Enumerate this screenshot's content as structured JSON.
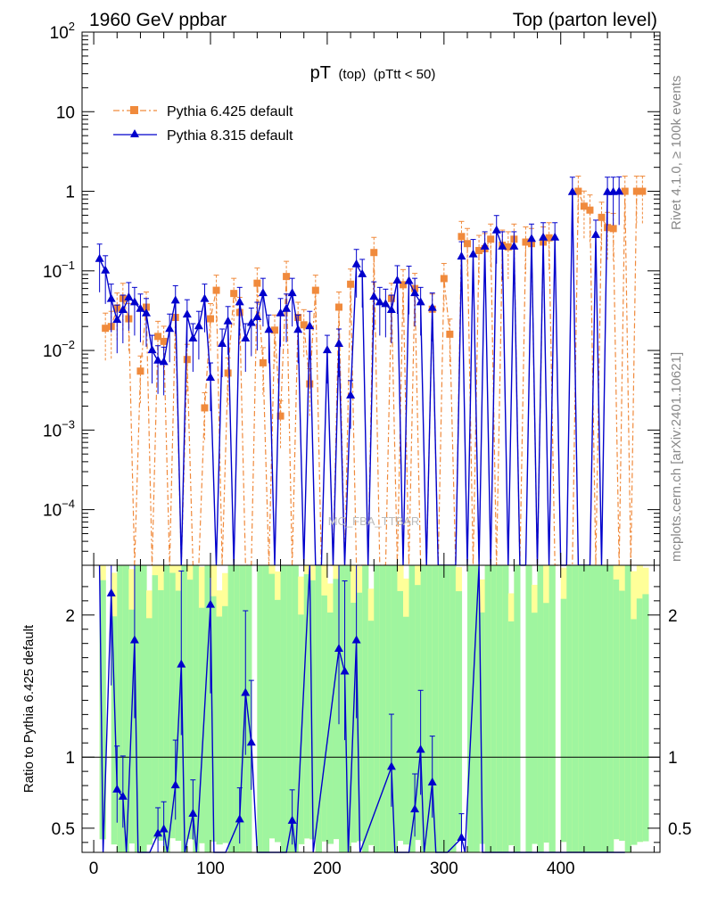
{
  "header": {
    "left": "1960 GeV ppbar",
    "right": "Top (parton level)"
  },
  "side_labels": {
    "rivet": "Rivet 4.1.0, ≥ 100k events",
    "mcplots": "mcplots.cern.ch [arXiv:2401.10621]"
  },
  "watermark": "MC_FBA_TTBAR",
  "colors": {
    "pythia6": "#f08a3c",
    "pythia8": "#0000cc",
    "band_green": "#9ff59f",
    "band_yellow": "#ffff99"
  },
  "chart_data": [
    {
      "type": "line",
      "title": "pT",
      "title_sub": "(top)",
      "title_cut": "(pTtt < 50)",
      "yscale": "log",
      "ylim": [
        2e-05,
        100
      ],
      "xlim": [
        -10,
        485
      ],
      "yticks": [
        {
          "base": "10",
          "exp": "2",
          "value": 100
        },
        {
          "text": "10",
          "value": 10
        },
        {
          "text": "1",
          "value": 1
        },
        {
          "base": "10",
          "exp": "−1",
          "value": 0.1
        },
        {
          "base": "10",
          "exp": "−2",
          "value": 0.01
        },
        {
          "base": "10",
          "exp": "−3",
          "value": 0.001
        },
        {
          "base": "10",
          "exp": "−4",
          "value": 0.0001
        }
      ],
      "legend_position": "top-left",
      "series": [
        {
          "name": "Pythia 6.425 default",
          "style": "dash-dot, square markers",
          "points": [
            [
              10,
              0.019
            ],
            [
              15,
              0.02
            ],
            [
              20,
              0.034
            ],
            [
              25,
              0.045
            ],
            [
              30,
              0.025
            ],
            [
              40,
              0.0055
            ],
            [
              45,
              0.035
            ],
            [
              55,
              0.015
            ],
            [
              60,
              0.013
            ],
            [
              70,
              0.026
            ],
            [
              80,
              0.0077
            ],
            [
              95,
              0.0019
            ],
            [
              100,
              0.025
            ],
            [
              105,
              0.057
            ],
            [
              115,
              0.0052
            ],
            [
              120,
              0.052
            ],
            [
              125,
              0.03
            ],
            [
              140,
              0.07
            ],
            [
              145,
              0.007
            ],
            [
              155,
              0.018
            ],
            [
              160,
              0.0015
            ],
            [
              165,
              0.085
            ],
            [
              175,
              0.026
            ],
            [
              180,
              0.021
            ],
            [
              185,
              0.0038
            ],
            [
              190,
              0.057
            ],
            [
              210,
              0.035
            ],
            [
              220,
              0.068
            ],
            [
              240,
              0.17
            ],
            [
              255,
              0.045
            ],
            [
              265,
              0.067
            ],
            [
              275,
              0.06
            ],
            [
              290,
              0.033
            ],
            [
              300,
              0.08
            ],
            [
              305,
              0.016
            ],
            [
              315,
              0.27
            ],
            [
              320,
              0.22
            ],
            [
              330,
              0.18
            ],
            [
              335,
              0.19
            ],
            [
              340,
              0.25
            ],
            [
              350,
              0.21
            ],
            [
              355,
              0.2
            ],
            [
              360,
              0.25
            ],
            [
              370,
              0.23
            ],
            [
              375,
              0.22
            ],
            [
              385,
              0.23
            ],
            [
              390,
              0.26
            ],
            [
              415,
              1.0
            ],
            [
              420,
              0.65
            ],
            [
              425,
              0.58
            ],
            [
              435,
              0.47
            ],
            [
              440,
              0.35
            ],
            [
              445,
              0.34
            ],
            [
              455,
              1.0
            ],
            [
              465,
              1.0
            ],
            [
              470,
              1.0
            ]
          ]
        },
        {
          "name": "Pythia 8.315 default",
          "style": "solid, triangle markers",
          "points": [
            [
              5,
              0.14
            ],
            [
              10,
              0.1
            ],
            [
              15,
              0.044
            ],
            [
              20,
              0.024
            ],
            [
              25,
              0.032
            ],
            [
              30,
              0.046
            ],
            [
              35,
              0.04
            ],
            [
              40,
              0.033
            ],
            [
              45,
              0.029
            ],
            [
              50,
              0.01
            ],
            [
              55,
              0.0074
            ],
            [
              60,
              0.0071
            ],
            [
              65,
              0.0185
            ],
            [
              70,
              0.042
            ],
            [
              80,
              0.028
            ],
            [
              85,
              0.014
            ],
            [
              90,
              0.02
            ],
            [
              95,
              0.044
            ],
            [
              100,
              0.0045
            ],
            [
              110,
              0.012
            ],
            [
              115,
              0.023
            ],
            [
              125,
              0.04
            ],
            [
              130,
              0.014
            ],
            [
              135,
              0.022
            ],
            [
              140,
              0.026
            ],
            [
              145,
              0.052
            ],
            [
              150,
              0.018
            ],
            [
              160,
              0.029
            ],
            [
              165,
              0.033
            ],
            [
              170,
              0.052
            ],
            [
              175,
              0.018
            ],
            [
              185,
              0.02
            ],
            [
              200,
              0.01
            ],
            [
              210,
              0.012
            ],
            [
              220,
              0.0027
            ],
            [
              225,
              0.12
            ],
            [
              230,
              0.09
            ],
            [
              240,
              0.047
            ],
            [
              245,
              0.04
            ],
            [
              250,
              0.038
            ],
            [
              255,
              0.032
            ],
            [
              260,
              0.075
            ],
            [
              270,
              0.074
            ],
            [
              275,
              0.052
            ],
            [
              280,
              0.04
            ],
            [
              290,
              0.034
            ],
            [
              315,
              0.15
            ],
            [
              325,
              0.16
            ],
            [
              335,
              0.2
            ],
            [
              345,
              0.32
            ],
            [
              350,
              0.2
            ],
            [
              360,
              0.2
            ],
            [
              375,
              0.25
            ],
            [
              385,
              0.26
            ],
            [
              395,
              0.26
            ],
            [
              410,
              0.97
            ],
            [
              430,
              0.28
            ],
            [
              440,
              0.97
            ],
            [
              445,
              0.97
            ],
            [
              450,
              0.98
            ]
          ]
        }
      ]
    },
    {
      "type": "line",
      "ylabel": "Ratio to Pythia 6.425 default",
      "ylim": [
        0.33,
        2.35
      ],
      "xlim": [
        -10,
        485
      ],
      "yticks": [
        {
          "text": "0.5",
          "value": 0.5
        },
        {
          "text": "1",
          "value": 1
        },
        {
          "text": "2",
          "value": 2
        }
      ],
      "xticks": [
        {
          "text": "0",
          "value": 0
        },
        {
          "text": "100",
          "value": 100
        },
        {
          "text": "200",
          "value": 200
        },
        {
          "text": "300",
          "value": 300
        },
        {
          "text": "400",
          "value": 400
        }
      ],
      "reference_line": 1,
      "series": [
        {
          "name": "Pythia 8.315 / Pythia 6.425",
          "points": [
            [
              5,
              3.0
            ],
            [
              15,
              2.15
            ],
            [
              20,
              0.77
            ],
            [
              25,
              0.72
            ],
            [
              35,
              1.82
            ],
            [
              45,
              0.33
            ],
            [
              55,
              0.46
            ],
            [
              60,
              0.49
            ],
            [
              70,
              0.8
            ],
            [
              75,
              1.65
            ],
            [
              85,
              0.6
            ],
            [
              100,
              2.07
            ],
            [
              110,
              0.33
            ],
            [
              125,
              0.56
            ],
            [
              130,
              1.45
            ],
            [
              135,
              1.1
            ],
            [
              140,
              0.33
            ],
            [
              165,
              0.33
            ],
            [
              170,
              0.55
            ],
            [
              185,
              3.0
            ],
            [
              210,
              1.76
            ],
            [
              215,
              1.6
            ],
            [
              225,
              1.82
            ],
            [
              255,
              0.93
            ],
            [
              270,
              0.33
            ],
            [
              275,
              0.63
            ],
            [
              280,
              1.05
            ],
            [
              290,
              0.82
            ],
            [
              300,
              0.33
            ],
            [
              315,
              0.43
            ],
            [
              330,
              3.0
            ],
            [
              340,
              0.33
            ],
            [
              455,
              0.33
            ]
          ]
        }
      ]
    }
  ]
}
